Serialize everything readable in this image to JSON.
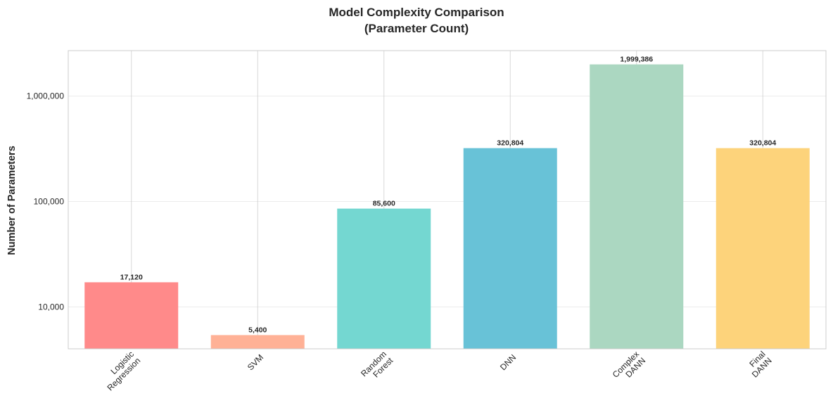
{
  "chart_data": {
    "type": "bar",
    "title": "Model Complexity Comparison",
    "subtitle": "(Parameter Count)",
    "xlabel": "",
    "ylabel": "Number of Parameters",
    "yscale": "log",
    "ylim": [
      4000,
      2700000
    ],
    "yticks": [
      10000,
      100000,
      1000000
    ],
    "ytick_labels": [
      "10,000",
      "100,000",
      "1,000,000"
    ],
    "grid": true,
    "categories": [
      [
        "Logistic",
        "Regression"
      ],
      [
        "SVM"
      ],
      [
        "Random",
        "Forest"
      ],
      [
        "DNN"
      ],
      [
        "Complex",
        "DANN"
      ],
      [
        "Final",
        "DANN"
      ]
    ],
    "values": [
      17120,
      5400,
      85600,
      320804,
      1999386,
      320804
    ],
    "value_labels": [
      "17,120",
      "5,400",
      "85,600",
      "320,804",
      "1,999,386",
      "320,804"
    ],
    "colors": [
      "#ff8a8a",
      "#ffb196",
      "#74d7d1",
      "#68c2d7",
      "#abd7c1",
      "#fdd37b"
    ]
  }
}
